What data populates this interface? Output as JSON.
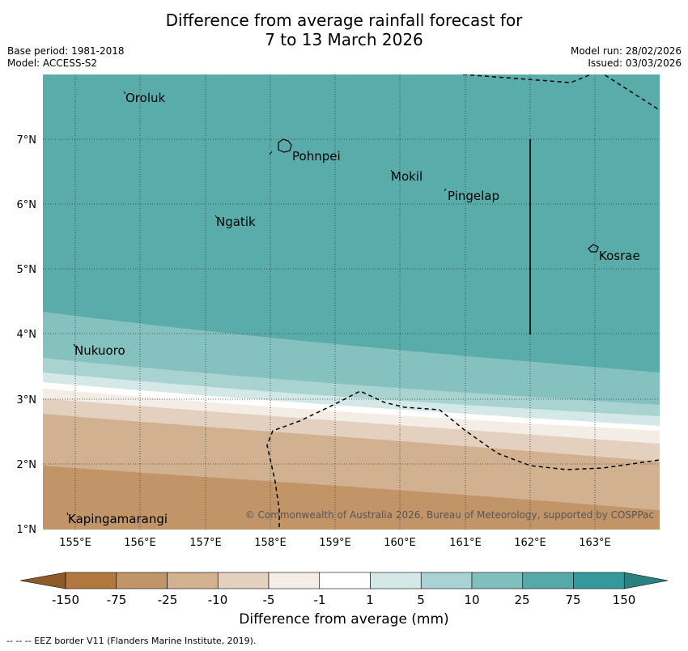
{
  "header": {
    "title_line1": "Difference from average rainfall forecast for",
    "title_line2": "7 to 13 March 2026",
    "base_period": "Base period: 1981-2018",
    "model": "Model: ACCESS-S2",
    "model_run": "Model run: 28/02/2026",
    "issued": "Issued: 03/03/2026"
  },
  "map": {
    "x_ticks": [
      "155°E",
      "156°E",
      "157°E",
      "158°E",
      "159°E",
      "160°E",
      "161°E",
      "162°E",
      "163°E"
    ],
    "y_ticks": [
      "7°N",
      "6°N",
      "5°N",
      "4°N",
      "3°N",
      "2°N",
      "1°N"
    ],
    "places": [
      "Oroluk",
      "Pohnpei",
      "Mokil",
      "Pingelap",
      "Ngatik",
      "Kosrae",
      "Nukuoro",
      "Kapingamarangi"
    ],
    "copyright": "© Commonwealth of Australia 2026, Bureau of Meteorology, supported by COSPPac"
  },
  "colorbar": {
    "labels": [
      "-150",
      "-75",
      "-25",
      "-10",
      "-5",
      "-1",
      "1",
      "5",
      "10",
      "25",
      "75",
      "150"
    ],
    "colors": [
      "#8e5a2a",
      "#b3783e",
      "#c29569",
      "#d2b191",
      "#e3d0bf",
      "#f3ede6",
      "#ffffff",
      "#d3e8e7",
      "#a9d3d2",
      "#80bfbc",
      "#56a9a9",
      "#33999a",
      "#2a8180"
    ],
    "title": "Difference from average (mm)"
  },
  "footnote": "--  --  -- EEZ border V11 (Flanders Marine Institute, 2019)."
}
